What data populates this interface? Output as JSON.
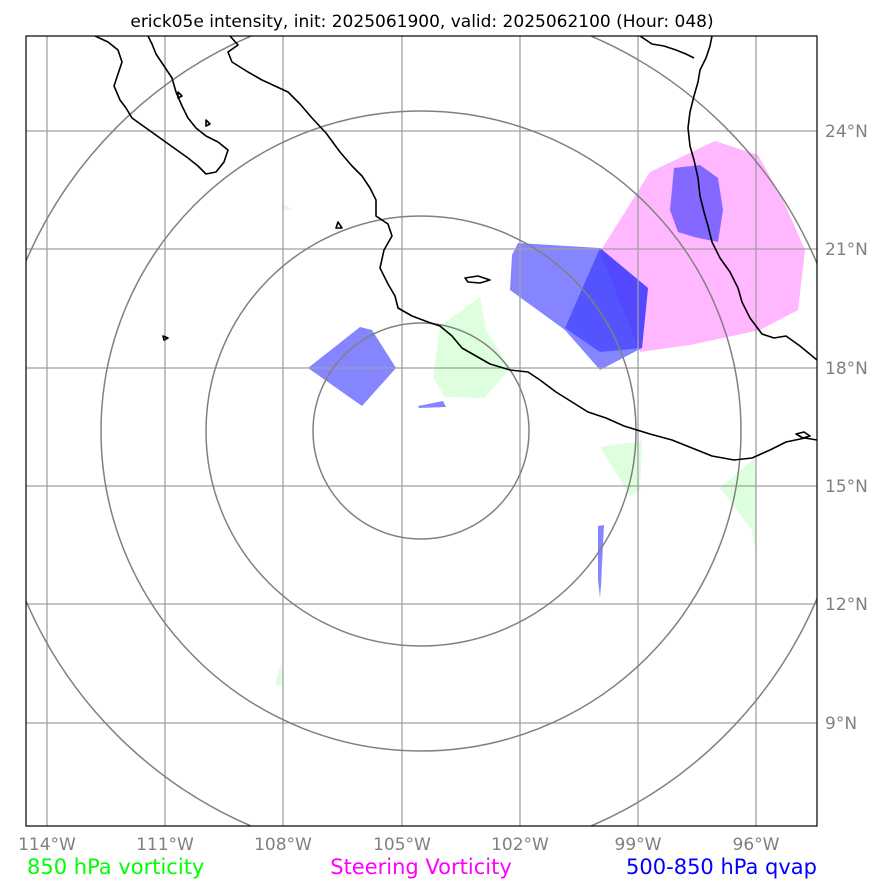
{
  "title": "erick05e intensity, init: 2025061900, valid: 2025062100 (Hour: 048)",
  "colors": {
    "vort850": "#ccffcc",
    "steering": "#ff99ff",
    "qvap": "#3333ff",
    "coast": "#000000",
    "grid": "#a0a0a0",
    "rings": "#808080",
    "tick_text": "#808080"
  },
  "map": {
    "lon_range": [
      -114.3,
      -94.2
    ],
    "lat_range": [
      7.4,
      27.4
    ],
    "center": [
      -105,
      17
    ]
  },
  "lon_ticks": [
    {
      "value": -114,
      "label": "114°W"
    },
    {
      "value": -111,
      "label": "111°W"
    },
    {
      "value": -108,
      "label": "108°W"
    },
    {
      "value": -105,
      "label": "105°W"
    },
    {
      "value": -102,
      "label": "102°W"
    },
    {
      "value": -99,
      "label": "99°W"
    },
    {
      "value": -96,
      "label": "96°W"
    }
  ],
  "lat_ticks": [
    {
      "value": 24,
      "label": "24°N"
    },
    {
      "value": 21,
      "label": "21°N"
    },
    {
      "value": 18,
      "label": "18°N"
    },
    {
      "value": 15,
      "label": "15°N"
    },
    {
      "value": 12,
      "label": "12°N"
    },
    {
      "value": 9,
      "label": "9°N"
    }
  ],
  "legend": [
    {
      "label": "850 hPa vorticity",
      "color": "#00ff00"
    },
    {
      "label": "Steering Vorticity",
      "color": "#ff00ff"
    },
    {
      "label": "500-850 hPa qvap",
      "color": "#0000ff"
    }
  ]
}
